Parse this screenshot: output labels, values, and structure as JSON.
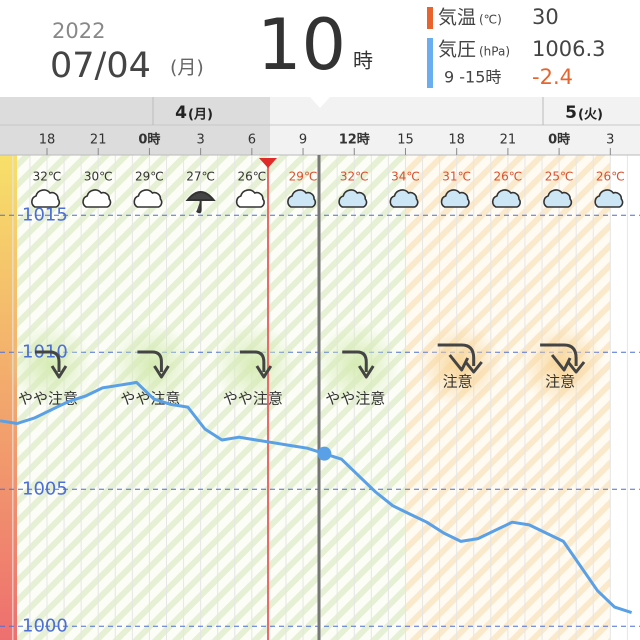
{
  "header": {
    "year": "2022",
    "date": "07/04",
    "weekday": "(月)",
    "hour": "10",
    "hour_unit": "時",
    "temp_label": "気温",
    "temp_unit": "(℃)",
    "temp_value": "30",
    "pressure_label": "気圧",
    "pressure_unit": "(hPa)",
    "pressure_value": "1006.3",
    "change_range": "9 -15時",
    "change_value": "-2.4"
  },
  "timeline": {
    "days": [
      {
        "day": "4",
        "weekday": "(月)"
      },
      {
        "day": "5",
        "weekday": "(火)"
      }
    ],
    "hours": [
      "18",
      "21",
      "0時",
      "3",
      "6",
      "9",
      "12時",
      "15",
      "18",
      "21",
      "0時",
      "3"
    ]
  },
  "weather": [
    {
      "temp": "32℃",
      "icon": "cloud",
      "forecast": false
    },
    {
      "temp": "30℃",
      "icon": "cloud",
      "forecast": false
    },
    {
      "temp": "29℃",
      "icon": "cloud",
      "forecast": false
    },
    {
      "temp": "27℃",
      "icon": "rain",
      "forecast": false
    },
    {
      "temp": "26℃",
      "icon": "cloud",
      "forecast": false
    },
    {
      "temp": "29℃",
      "icon": "cloud",
      "forecast": true
    },
    {
      "temp": "32℃",
      "icon": "cloud",
      "forecast": true
    },
    {
      "temp": "34℃",
      "icon": "cloud",
      "forecast": true
    },
    {
      "temp": "31℃",
      "icon": "cloud",
      "forecast": true
    },
    {
      "temp": "26℃",
      "icon": "cloud",
      "forecast": true
    },
    {
      "temp": "25℃",
      "icon": "cloud",
      "forecast": true
    },
    {
      "temp": "26℃",
      "icon": "cloud",
      "forecast": true
    }
  ],
  "chart_data": {
    "type": "line",
    "ylim": [
      999.5,
      1017.2
    ],
    "yticks": [
      1015,
      1010,
      1005,
      1000
    ],
    "color": "#5aa0e6",
    "values": [
      1007.5,
      1007.4,
      1007.6,
      1007.9,
      1008.2,
      1008.4,
      1008.7,
      1008.8,
      1008.9,
      1008.3,
      1008.1,
      1008.0,
      1007.2,
      1006.8,
      1006.9,
      1006.8,
      1006.7,
      1006.6,
      1006.5,
      1006.3,
      1006.1,
      1005.5,
      1004.9,
      1004.4,
      1004.1,
      1003.8,
      1003.4,
      1003.1,
      1003.2,
      1003.5,
      1003.8,
      1003.7,
      1003.4,
      1003.1,
      1002.2,
      1001.3,
      1000.7,
      1000.5
    ]
  },
  "warnings": [
    {
      "label": "やや注意",
      "level": "caution"
    },
    {
      "label": "やや注意",
      "level": "caution"
    },
    {
      "label": "やや注意",
      "level": "caution"
    },
    {
      "label": "やや注意",
      "level": "caution"
    },
    {
      "label": "注意",
      "level": "warning"
    },
    {
      "label": "注意",
      "level": "warning"
    }
  ]
}
